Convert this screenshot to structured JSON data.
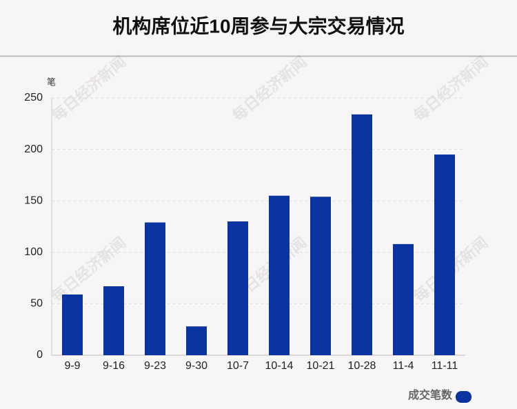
{
  "chart_data": {
    "type": "bar",
    "title": "机构席位近10周参与大宗交易情况",
    "y_unit": "笔",
    "watermark": "每日经济新闻",
    "categories": [
      "9-9",
      "9-16",
      "9-23",
      "9-30",
      "10-7",
      "10-14",
      "10-21",
      "10-28",
      "11-4",
      "11-11"
    ],
    "series": [
      {
        "name": "成交笔数",
        "color": "#0c34a0",
        "values": [
          59,
          67,
          129,
          28,
          130,
          155,
          154,
          234,
          108,
          195
        ]
      }
    ],
    "ylim": [
      0,
      250
    ],
    "yticks": [
      0,
      50,
      100,
      150,
      200,
      250
    ],
    "grid": true
  }
}
